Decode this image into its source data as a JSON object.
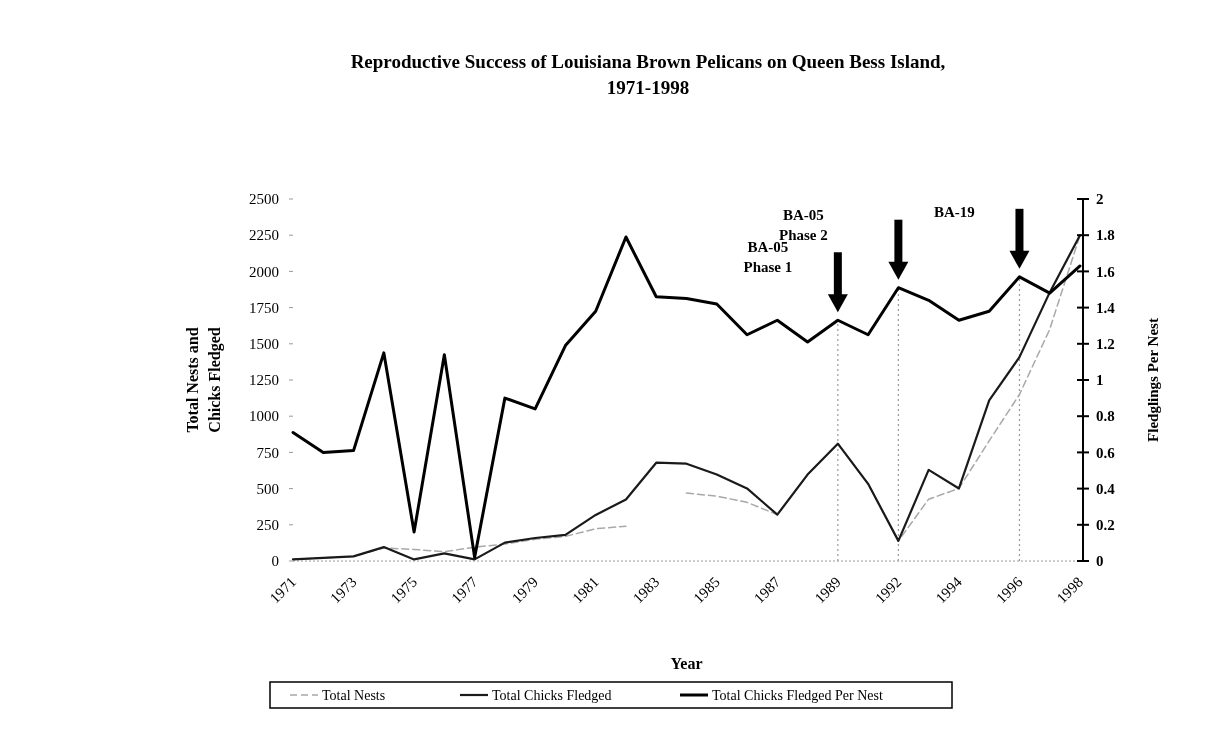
{
  "chart_data": {
    "type": "line",
    "title": "Reproductive Success of Louisiana Brown Pelicans on Queen Bess Island, 1971-1998",
    "xlabel": "Year",
    "ylabel": "Total Nests and Chicks Fledged",
    "y2label": "Fledglings Per Nest",
    "categories": [
      "1971",
      null,
      "1973",
      null,
      "1975",
      null,
      "1977",
      null,
      "1979",
      null,
      "1981",
      null,
      "1983",
      null,
      "1985",
      null,
      "1987",
      null,
      "1989",
      null,
      "1992",
      null,
      "1994",
      null,
      "1996",
      null,
      "1998"
    ],
    "series": [
      {
        "name": "Total Nests",
        "color": "#a8a8a8",
        "line_style": "dashed",
        "values": [
          11,
          21,
          32,
          90,
          80,
          64,
          96,
          117,
          150,
          170,
          223,
          240,
          null,
          469,
          448,
          405,
          320,
          597,
          810,
          533,
          139,
          427,
          501,
          830,
          1150,
          1600,
          2250
        ]
      },
      {
        "name": "Total Chicks Fledged",
        "color": "#1a1a1a",
        "line_style": "solid",
        "values": [
          11,
          21,
          32,
          96,
          11,
          53,
          11,
          127,
          159,
          180,
          318,
          425,
          679,
          672,
          597,
          501,
          320,
          597,
          810,
          533,
          139,
          629,
          501,
          1109,
          1408,
          1855,
          2250
        ]
      },
      {
        "name": "Total Chicks Fledged Per Nest",
        "color": "#000000",
        "line_style": "solid",
        "axis": "y2",
        "values": [
          0.71,
          0.6,
          0.61,
          1.15,
          0.16,
          1.14,
          0.02,
          0.9,
          0.84,
          1.19,
          1.38,
          1.79,
          1.46,
          1.45,
          1.42,
          1.25,
          1.33,
          1.21,
          1.33,
          1.25,
          1.51,
          1.44,
          1.33,
          1.38,
          1.57,
          1.48,
          1.63
        ]
      }
    ],
    "ylim": [
      0,
      2500
    ],
    "yticks": [
      0,
      250,
      500,
      750,
      1000,
      1250,
      1500,
      1750,
      2000,
      2250,
      2500
    ],
    "y2lim": [
      0,
      2
    ],
    "y2ticks": [
      0,
      0.2,
      0.4,
      0.6,
      0.8,
      1,
      1.2,
      1.4,
      1.6,
      1.8,
      2
    ],
    "ref_lines": [
      {
        "axis": "x",
        "value": "1989",
        "color": "#9a9a9a",
        "line_style": "dotted"
      },
      {
        "axis": "x",
        "value": "1992",
        "color": "#9a9a9a",
        "line_style": "dotted"
      },
      {
        "axis": "x",
        "value": "1996",
        "color": "#9a9a9a",
        "line_style": "dotted"
      }
    ],
    "annotations": [
      "BA-05\nPhase 1",
      "BA-05\nPhase 2",
      "BA-19"
    ],
    "legend": "bottom",
    "grid": false
  }
}
